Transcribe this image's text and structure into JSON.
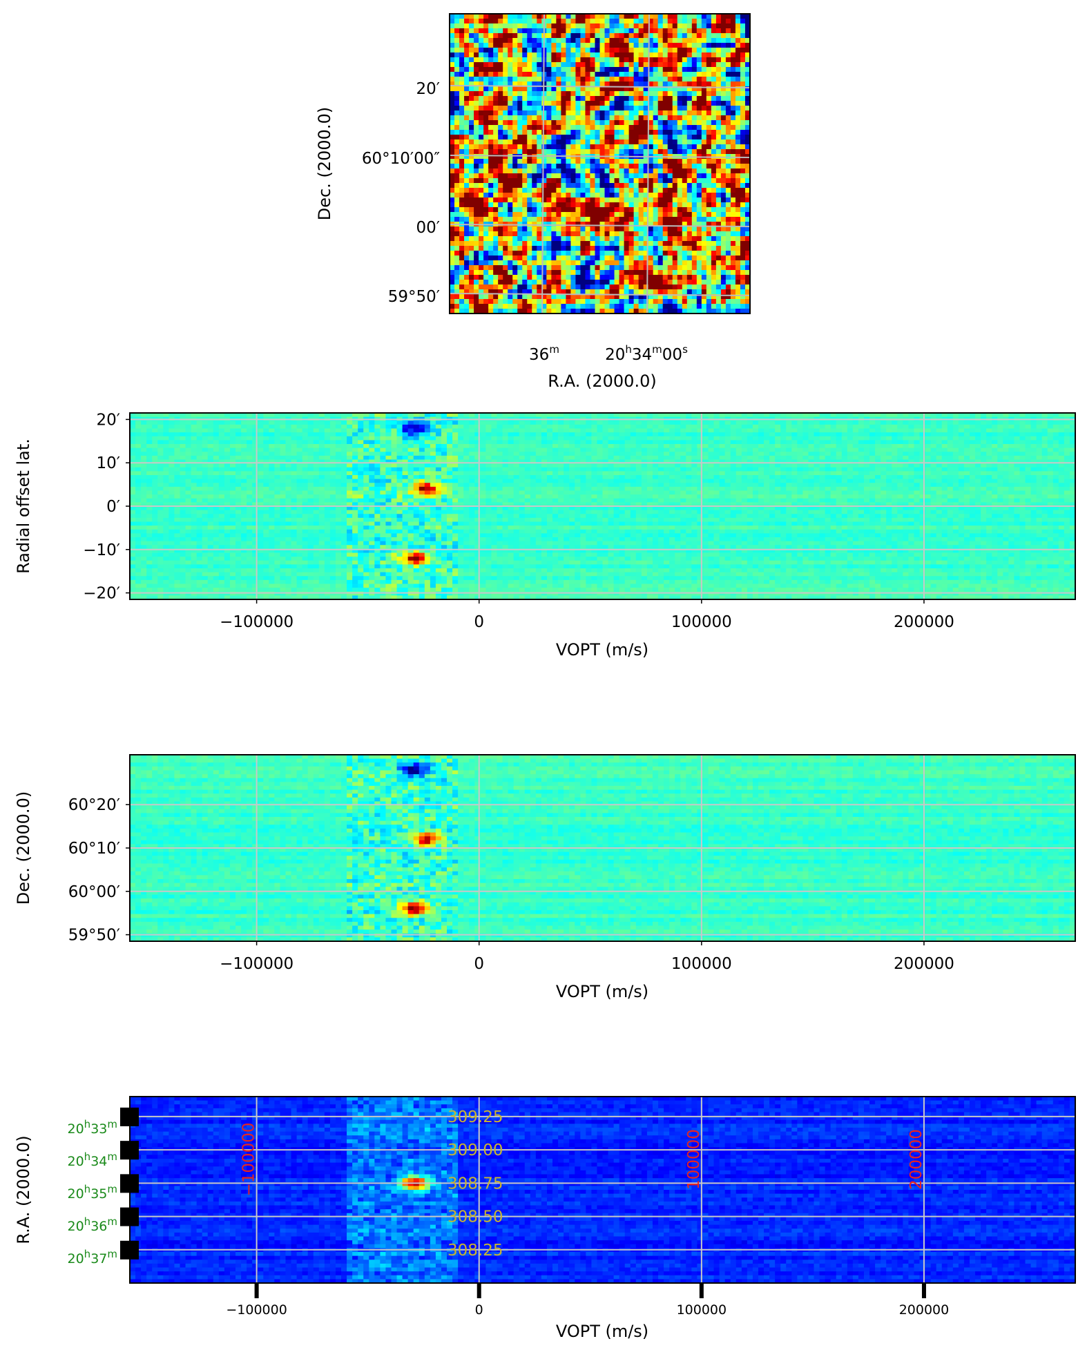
{
  "chart_data": [
    {
      "type": "heatmap",
      "panel": "sky-image",
      "xlabel": "R.A. (2000.0)",
      "ylabel": "Dec. (2000.0)",
      "x_ticks": [
        {
          "parts": [
            "36",
            "m",
            "",
            "",
            "",
            ""
          ],
          "text": "36m"
        },
        {
          "parts": [
            "20",
            "h",
            "34",
            "m",
            "00",
            "s"
          ],
          "text": "20h34m00s"
        }
      ],
      "y_ticks": [
        "20′",
        "60°10′00″",
        "00′",
        "59°50′"
      ],
      "colormap": "jet",
      "grid": true,
      "grid_color": "#bbbbbb"
    },
    {
      "type": "heatmap",
      "panel": "position-velocity-radial",
      "xlabel": "VOPT (m/s)",
      "ylabel": "Radial offset lat.",
      "x_ticks": [
        "−100000",
        "0",
        "100000",
        "200000"
      ],
      "x_tick_values": [
        -100000,
        0,
        100000,
        200000
      ],
      "xlim": [
        -157000,
        268000
      ],
      "y_ticks": [
        "20′",
        "10′",
        "0′",
        "−10′",
        "−20′"
      ],
      "y_tick_values": [
        20,
        10,
        0,
        -10,
        -20
      ],
      "ylim": [
        -21.5,
        21.5
      ],
      "features": [
        {
          "v": -29000,
          "y": 18,
          "sign": "neg"
        },
        {
          "v": -24000,
          "y": 4,
          "sign": "pos"
        },
        {
          "v": -29000,
          "y": -12,
          "sign": "pos"
        }
      ],
      "colormap": "jet",
      "grid": true
    },
    {
      "type": "heatmap",
      "panel": "position-velocity-dec",
      "xlabel": "VOPT (m/s)",
      "ylabel": "Dec. (2000.0)",
      "x_ticks": [
        "−100000",
        "0",
        "100000",
        "200000"
      ],
      "x_tick_values": [
        -100000,
        0,
        100000,
        200000
      ],
      "xlim": [
        -157000,
        268000
      ],
      "y_ticks": [
        "60°20′",
        "60°10′",
        "60°00′",
        "59°50′"
      ],
      "y_tick_values": [
        20,
        10,
        0,
        -10
      ],
      "ylim": [
        -11.5,
        31.5
      ],
      "features": [
        {
          "v": -29000,
          "y": 28,
          "sign": "neg"
        },
        {
          "v": -24000,
          "y": 12,
          "sign": "pos"
        },
        {
          "v": -29000,
          "y": -4,
          "sign": "pos"
        }
      ],
      "colormap": "jet",
      "grid": true
    },
    {
      "type": "heatmap",
      "panel": "position-velocity-ra",
      "xlabel": "VOPT (m/s)",
      "ylabel": "R.A. (2000.0)",
      "x_ticks": [
        "−100000",
        "0",
        "100000",
        "200000"
      ],
      "x_tick_values": [
        -100000,
        0,
        100000,
        200000
      ],
      "xlim": [
        -157000,
        268000
      ],
      "y_ticks": [
        {
          "parts": [
            "20",
            "h",
            "33",
            "m"
          ],
          "text": "20h33m"
        },
        {
          "parts": [
            "20",
            "h",
            "34",
            "m"
          ],
          "text": "20h34m"
        },
        {
          "parts": [
            "20",
            "h",
            "35",
            "m"
          ],
          "text": "20h35m"
        },
        {
          "parts": [
            "20",
            "h",
            "36",
            "m"
          ],
          "text": "20h36m"
        },
        {
          "parts": [
            "20",
            "h",
            "37",
            "m"
          ],
          "text": "20h37m"
        }
      ],
      "y_tick_values": [
        308.25,
        308.5,
        308.75,
        309.0,
        309.25
      ],
      "ylim": [
        308.0,
        309.4
      ],
      "inner_y_labels": [
        "308.25",
        "308.50",
        "308.75",
        "309.00",
        "309.25"
      ],
      "inner_x_labels": [
        "−100000",
        "100000",
        "200000"
      ],
      "inner_x_values": [
        -100000,
        100000,
        200000
      ],
      "features": [
        {
          "v": -29000,
          "y": 308.75,
          "sign": "pos"
        }
      ],
      "colors": {
        "inner_y": "#c8b432",
        "inner_x": "#e8231f",
        "y_ticks": "#1a8a1a"
      },
      "colormap": "jet",
      "grid": true
    }
  ]
}
